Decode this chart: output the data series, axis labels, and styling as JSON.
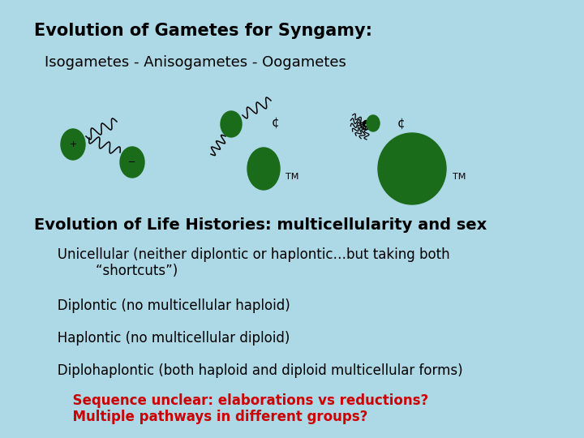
{
  "background_color": "#add8e6",
  "title_line1": "Evolution of Gametes for Syngamy:",
  "title_line2": "Isogametes - Anisogametes - Oogametes",
  "section2_title": "Evolution of Life Histories: multicellularity and sex",
  "bullet1": "   Unicellular (neither diplontic or haplontic…but taking both",
  "bullet1b": "            “shortcuts”)",
  "bullet2": "   Diplontic (no multicellular haploid)",
  "bullet3": "   Haplontic (no multicellular diploid)",
  "bullet4": "   Diplohaplontic (both haploid and diploid multicellular forms)",
  "red_line1": "      Sequence unclear: elaborations vs reductions?",
  "red_line2": "      Multiple pathways in different groups?",
  "green_color": "#1a6b1a",
  "text_color": "#000000",
  "red_color": "#cc0000"
}
